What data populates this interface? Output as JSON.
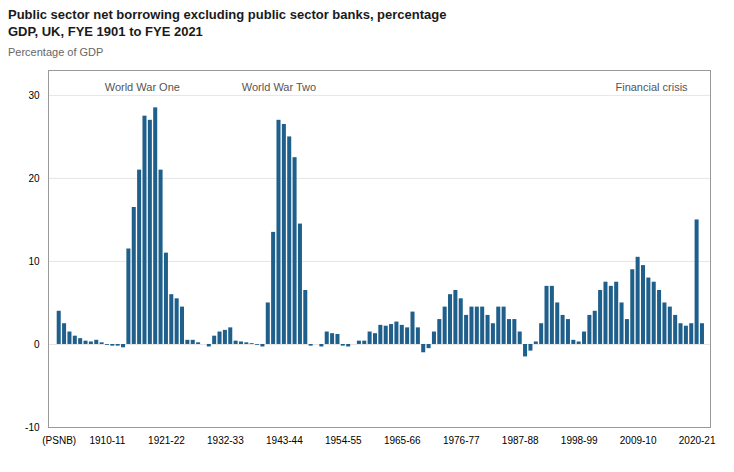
{
  "chart_data": {
    "type": "bar",
    "title": "Public sector net borrowing excluding public sector banks, percentage",
    "subtitle": "GDP, UK, FYE 1901 to FYE 2021",
    "y_label": "Percentage of GDP",
    "x": [
      1901,
      1902,
      1903,
      1904,
      1905,
      1906,
      1907,
      1908,
      1909,
      1910,
      1911,
      1912,
      1913,
      1914,
      1915,
      1916,
      1917,
      1918,
      1919,
      1920,
      1921,
      1922,
      1923,
      1924,
      1925,
      1926,
      1927,
      1928,
      1929,
      1930,
      1931,
      1932,
      1933,
      1934,
      1935,
      1936,
      1937,
      1938,
      1939,
      1940,
      1941,
      1942,
      1943,
      1944,
      1945,
      1946,
      1947,
      1948,
      1949,
      1950,
      1951,
      1952,
      1953,
      1954,
      1955,
      1956,
      1957,
      1958,
      1959,
      1960,
      1961,
      1962,
      1963,
      1964,
      1965,
      1966,
      1967,
      1968,
      1969,
      1970,
      1971,
      1972,
      1973,
      1974,
      1975,
      1976,
      1977,
      1978,
      1979,
      1980,
      1981,
      1982,
      1983,
      1984,
      1985,
      1986,
      1987,
      1988,
      1989,
      1990,
      1991,
      1992,
      1993,
      1994,
      1995,
      1996,
      1997,
      1998,
      1999,
      2000,
      2001,
      2002,
      2003,
      2004,
      2005,
      2006,
      2007,
      2008,
      2009,
      2010,
      2011,
      2012,
      2013,
      2014,
      2015,
      2016,
      2017,
      2018,
      2019,
      2020,
      2021
    ],
    "values": [
      4.0,
      2.5,
      1.5,
      1.0,
      0.7,
      0.4,
      0.3,
      0.5,
      0.2,
      -0.1,
      -0.2,
      -0.2,
      -0.4,
      11.5,
      16.5,
      21.0,
      27.5,
      27.0,
      28.5,
      21.0,
      11.0,
      6.0,
      5.5,
      4.5,
      0.5,
      0.5,
      0.2,
      0.0,
      -0.3,
      1.0,
      1.5,
      1.7,
      2.0,
      0.4,
      0.3,
      0.2,
      0.1,
      -0.1,
      -0.3,
      5.0,
      13.5,
      27.0,
      26.5,
      25.0,
      22.5,
      14.5,
      6.5,
      -0.2,
      0.0,
      -0.3,
      1.5,
      1.3,
      1.2,
      -0.2,
      -0.3,
      0.0,
      0.4,
      0.4,
      1.5,
      1.3,
      2.3,
      2.2,
      2.4,
      2.7,
      2.3,
      2.0,
      3.9,
      2.0,
      -1.0,
      -0.5,
      1.5,
      3.0,
      4.5,
      6.0,
      6.5,
      5.5,
      3.5,
      4.5,
      4.5,
      4.5,
      3.5,
      2.5,
      4.5,
      4.5,
      3.0,
      3.0,
      1.5,
      -1.5,
      -0.8,
      0.3,
      2.5,
      7.0,
      7.0,
      5.0,
      3.5,
      3.0,
      0.5,
      0.3,
      1.5,
      3.5,
      4.0,
      6.5,
      7.5,
      7.0,
      7.5,
      5.0,
      3.0,
      9.0,
      10.5,
      9.5,
      8.0,
      7.5,
      6.5,
      5.0,
      4.5,
      3.5,
      2.5,
      2.2,
      2.5,
      15.0,
      2.5
    ],
    "color": "#1e5f8b",
    "xlim": [
      1899.0,
      2022.5
    ],
    "xticks": [
      {
        "value": 1901,
        "label": "(PSNB)"
      },
      {
        "value": 1910,
        "label": "1910-11"
      },
      {
        "value": 1921,
        "label": "1921-22"
      },
      {
        "value": 1932,
        "label": "1932-33"
      },
      {
        "value": 1943,
        "label": "1943-44"
      },
      {
        "value": 1954,
        "label": "1954-55"
      },
      {
        "value": 1965,
        "label": "1965-66"
      },
      {
        "value": 1976,
        "label": "1976-77"
      },
      {
        "value": 1987,
        "label": "1987-88"
      },
      {
        "value": 1998,
        "label": "1998-99"
      },
      {
        "value": 2009,
        "label": "2009-10"
      },
      {
        "value": 2020,
        "label": "2020-21"
      }
    ],
    "ylim": [
      -10,
      33
    ],
    "yticks": [
      -10,
      0,
      10,
      20,
      30
    ],
    "grid": true,
    "annotations": [
      {
        "text": "World War One",
        "x": 1916.5,
        "y": 30.5
      },
      {
        "text": "World War Two",
        "x": 1942.0,
        "y": 30.5
      },
      {
        "text": "Financial crisis",
        "x": 2011.5,
        "y": 30.5
      }
    ]
  }
}
